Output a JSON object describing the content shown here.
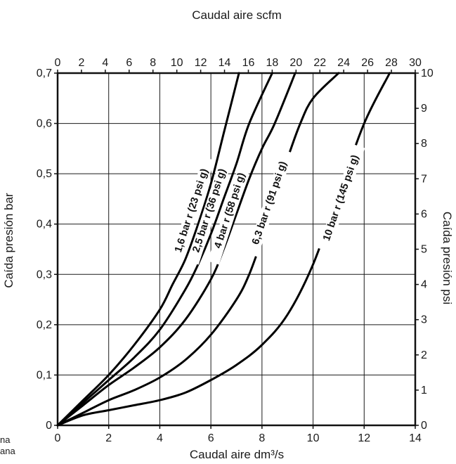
{
  "chart_data": {
    "type": "line",
    "top_xlabel": "Caudal aire scfm",
    "xlabel": "Caudal aire dm³/s",
    "ylabel": "Caída presión bar",
    "right_ylabel": "Caída presión psi",
    "xlim": [
      0,
      14
    ],
    "ylim": [
      0,
      0.7
    ],
    "top_xlim": [
      0,
      30
    ],
    "right_ylim": [
      0,
      10
    ],
    "x_ticks": [
      "0",
      "2",
      "4",
      "6",
      "8",
      "10",
      "12",
      "14"
    ],
    "y_ticks": [
      "0",
      "0,1",
      "0,2",
      "0,3",
      "0,4",
      "0,5",
      "0,6",
      "0,7"
    ],
    "top_x_ticks": [
      "0",
      "2",
      "4",
      "6",
      "8",
      "10",
      "12",
      "14",
      "16",
      "18",
      "20",
      "22",
      "24",
      "26",
      "28",
      "30"
    ],
    "right_y_ticks": [
      "0",
      "1",
      "2",
      "3",
      "4",
      "5",
      "6",
      "7",
      "8",
      "9",
      "10"
    ],
    "grid": true,
    "series": [
      {
        "name": "1,6 bar r (23 psi g)",
        "points": [
          [
            0,
            0
          ],
          [
            1,
            0.05
          ],
          [
            2,
            0.1
          ],
          [
            3,
            0.16
          ],
          [
            4,
            0.23
          ],
          [
            4.5,
            0.28
          ],
          [
            5,
            0.33
          ],
          [
            5.5,
            0.4
          ],
          [
            6,
            0.48
          ],
          [
            6.5,
            0.58
          ],
          [
            7.1,
            0.7
          ]
        ]
      },
      {
        "name": "2,5 bar r (36 psi g)",
        "points": [
          [
            0,
            0
          ],
          [
            1,
            0.045
          ],
          [
            2,
            0.09
          ],
          [
            3,
            0.135
          ],
          [
            4,
            0.19
          ],
          [
            5,
            0.27
          ],
          [
            5.5,
            0.32
          ],
          [
            6,
            0.38
          ],
          [
            6.5,
            0.45
          ],
          [
            7,
            0.52
          ],
          [
            7.5,
            0.6
          ],
          [
            8.4,
            0.7
          ]
        ]
      },
      {
        "name": "4 bar r (58 psi g)",
        "points": [
          [
            0,
            0
          ],
          [
            1,
            0.04
          ],
          [
            2,
            0.08
          ],
          [
            3,
            0.115
          ],
          [
            4,
            0.155
          ],
          [
            5,
            0.21
          ],
          [
            6,
            0.29
          ],
          [
            6.5,
            0.35
          ],
          [
            7,
            0.42
          ],
          [
            7.5,
            0.49
          ],
          [
            8,
            0.55
          ],
          [
            8.5,
            0.6
          ],
          [
            9.3,
            0.7
          ]
        ]
      },
      {
        "name": "6,3 bar r (91 psi g)",
        "points": [
          [
            0,
            0
          ],
          [
            1,
            0.025
          ],
          [
            2,
            0.05
          ],
          [
            3,
            0.07
          ],
          [
            4,
            0.095
          ],
          [
            5,
            0.13
          ],
          [
            6,
            0.18
          ],
          [
            7,
            0.25
          ],
          [
            7.5,
            0.3
          ],
          [
            8,
            0.37
          ],
          [
            8.5,
            0.45
          ],
          [
            9,
            0.53
          ],
          [
            9.5,
            0.6
          ],
          [
            10,
            0.65
          ],
          [
            11,
            0.7
          ]
        ]
      },
      {
        "name": "10 bar r (145 psi g)",
        "points": [
          [
            0,
            0
          ],
          [
            1,
            0.02
          ],
          [
            2,
            0.03
          ],
          [
            3,
            0.04
          ],
          [
            4,
            0.05
          ],
          [
            5,
            0.065
          ],
          [
            6,
            0.09
          ],
          [
            7,
            0.12
          ],
          [
            8,
            0.16
          ],
          [
            9,
            0.22
          ],
          [
            10,
            0.32
          ],
          [
            11,
            0.46
          ],
          [
            12,
            0.6
          ],
          [
            13,
            0.7
          ]
        ]
      }
    ],
    "left_fragments": [
      "na",
      "ana"
    ]
  }
}
